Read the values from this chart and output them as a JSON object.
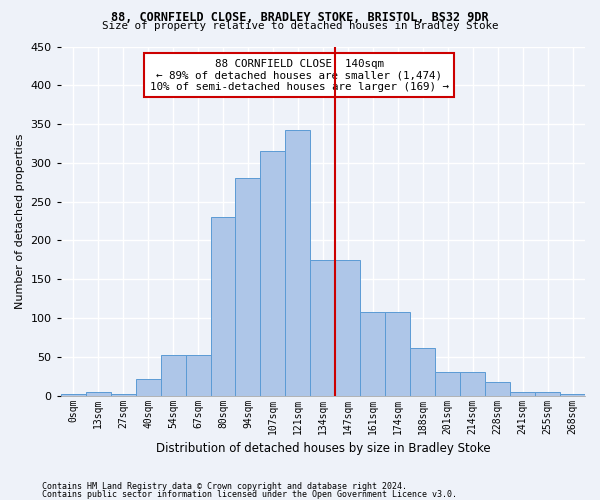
{
  "title1": "88, CORNFIELD CLOSE, BRADLEY STOKE, BRISTOL, BS32 9DR",
  "title2": "Size of property relative to detached houses in Bradley Stoke",
  "xlabel": "Distribution of detached houses by size in Bradley Stoke",
  "ylabel": "Number of detached properties",
  "bin_labels": [
    "0sqm",
    "13sqm",
    "27sqm",
    "40sqm",
    "54sqm",
    "67sqm",
    "80sqm",
    "94sqm",
    "107sqm",
    "121sqm",
    "134sqm",
    "147sqm",
    "161sqm",
    "174sqm",
    "188sqm",
    "201sqm",
    "214sqm",
    "228sqm",
    "241sqm",
    "255sqm",
    "268sqm"
  ],
  "bar_heights": [
    2,
    5,
    2,
    21,
    53,
    53,
    230,
    280,
    315,
    342,
    175,
    175,
    108,
    108,
    62,
    30,
    30,
    17,
    5,
    5,
    2
  ],
  "bar_color": "#aec6e8",
  "bar_edge_color": "#5b9bd5",
  "vline_index": 10.5,
  "vline_color": "#cc0000",
  "annotation_text": "88 CORNFIELD CLOSE: 140sqm\n← 89% of detached houses are smaller (1,474)\n10% of semi-detached houses are larger (169) →",
  "annotation_box_color": "#cc0000",
  "bg_color": "#eef2f9",
  "grid_color": "#ffffff",
  "footer1": "Contains HM Land Registry data © Crown copyright and database right 2024.",
  "footer2": "Contains public sector information licensed under the Open Government Licence v3.0.",
  "ylim": [
    0,
    450
  ],
  "yticks": [
    0,
    50,
    100,
    150,
    200,
    250,
    300,
    350,
    400,
    450
  ]
}
